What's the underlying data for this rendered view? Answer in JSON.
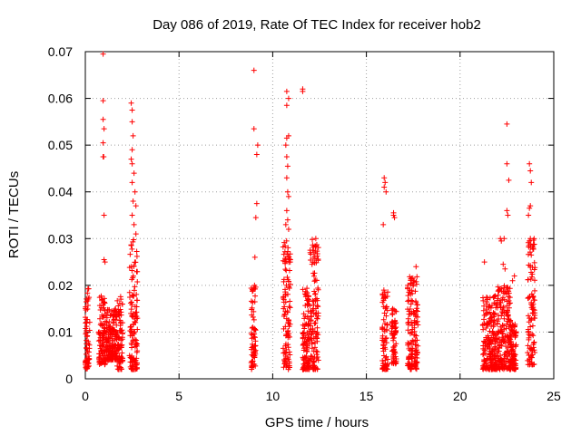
{
  "chart_data": {
    "type": "scatter",
    "title": "Day 086 of 2019, Rate Of TEC Index for receiver hob2",
    "xlabel": "GPS time / hours",
    "ylabel": "ROTI / TECUs",
    "xlim": [
      0,
      25
    ],
    "ylim": [
      0,
      0.07
    ],
    "xticks": [
      0,
      5,
      10,
      15,
      20,
      25
    ],
    "yticks": [
      0,
      0.01,
      0.02,
      0.03,
      0.04,
      0.05,
      0.06,
      0.07
    ],
    "xtick_labels": [
      "0",
      "5",
      "10",
      "15",
      "20",
      "25"
    ],
    "ytick_labels": [
      "0",
      "0.01",
      "0.02",
      "0.03",
      "0.04",
      "0.05",
      "0.06",
      "0.07"
    ],
    "grid": true,
    "marker": "+",
    "series": [
      {
        "name": "ROTI",
        "color": "#ff0000",
        "clusters": [
          {
            "x_start": 0.0,
            "x_end": 0.25,
            "y_low": 0.002,
            "y_high": 0.02
          },
          {
            "x_start": 0.7,
            "x_end": 1.1,
            "y_low": 0.003,
            "y_high": 0.018
          },
          {
            "x_start": 1.1,
            "x_end": 1.7,
            "y_low": 0.004,
            "y_high": 0.015
          },
          {
            "x_start": 1.7,
            "x_end": 2.0,
            "y_low": 0.002,
            "y_high": 0.018
          },
          {
            "x_start": 2.35,
            "x_end": 2.8,
            "y_low": 0.002,
            "y_high": 0.03
          },
          {
            "x_start": 8.85,
            "x_end": 9.1,
            "y_low": 0.002,
            "y_high": 0.02
          },
          {
            "x_start": 10.55,
            "x_end": 10.95,
            "y_low": 0.002,
            "y_high": 0.03
          },
          {
            "x_start": 11.6,
            "x_end": 12.0,
            "y_low": 0.002,
            "y_high": 0.02
          },
          {
            "x_start": 12.0,
            "x_end": 12.45,
            "y_low": 0.002,
            "y_high": 0.03
          },
          {
            "x_start": 15.85,
            "x_end": 16.15,
            "y_low": 0.002,
            "y_high": 0.02
          },
          {
            "x_start": 16.35,
            "x_end": 16.6,
            "y_low": 0.003,
            "y_high": 0.015
          },
          {
            "x_start": 17.2,
            "x_end": 17.75,
            "y_low": 0.002,
            "y_high": 0.022
          },
          {
            "x_start": 21.2,
            "x_end": 22.0,
            "y_low": 0.002,
            "y_high": 0.018
          },
          {
            "x_start": 22.0,
            "x_end": 22.7,
            "y_low": 0.002,
            "y_high": 0.02
          },
          {
            "x_start": 22.7,
            "x_end": 23.0,
            "y_low": 0.002,
            "y_high": 0.012
          },
          {
            "x_start": 23.6,
            "x_end": 24.0,
            "y_low": 0.003,
            "y_high": 0.03
          }
        ],
        "outliers": [
          [
            0.95,
            0.0695
          ],
          [
            0.95,
            0.0595
          ],
          [
            0.95,
            0.0555
          ],
          [
            1.0,
            0.0535
          ],
          [
            0.95,
            0.0505
          ],
          [
            0.98,
            0.0475
          ],
          [
            0.95,
            0.0475
          ],
          [
            1.0,
            0.035
          ],
          [
            1.0,
            0.0255
          ],
          [
            1.05,
            0.025
          ],
          [
            2.45,
            0.059
          ],
          [
            2.5,
            0.0575
          ],
          [
            2.5,
            0.055
          ],
          [
            2.55,
            0.052
          ],
          [
            2.5,
            0.049
          ],
          [
            2.45,
            0.047
          ],
          [
            2.5,
            0.046
          ],
          [
            2.6,
            0.044
          ],
          [
            2.5,
            0.042
          ],
          [
            2.65,
            0.04
          ],
          [
            2.55,
            0.038
          ],
          [
            2.7,
            0.037
          ],
          [
            2.5,
            0.035
          ],
          [
            2.6,
            0.033
          ],
          [
            2.7,
            0.031
          ],
          [
            9.0,
            0.066
          ],
          [
            9.0,
            0.0535
          ],
          [
            9.2,
            0.05
          ],
          [
            9.15,
            0.048
          ],
          [
            9.15,
            0.0375
          ],
          [
            9.1,
            0.0345
          ],
          [
            9.05,
            0.026
          ],
          [
            10.75,
            0.0615
          ],
          [
            10.85,
            0.06
          ],
          [
            10.75,
            0.0585
          ],
          [
            10.85,
            0.052
          ],
          [
            10.75,
            0.0515
          ],
          [
            10.7,
            0.05
          ],
          [
            10.75,
            0.0475
          ],
          [
            10.8,
            0.0455
          ],
          [
            10.75,
            0.043
          ],
          [
            10.8,
            0.04
          ],
          [
            10.85,
            0.039
          ],
          [
            10.75,
            0.036
          ],
          [
            10.8,
            0.034
          ],
          [
            10.7,
            0.033
          ],
          [
            10.85,
            0.032
          ],
          [
            11.6,
            0.062
          ],
          [
            11.6,
            0.0615
          ],
          [
            12.0,
            0.0275
          ],
          [
            12.2,
            0.027
          ],
          [
            12.3,
            0.03
          ],
          [
            12.15,
            0.025
          ],
          [
            12.1,
            0.0245
          ],
          [
            15.95,
            0.043
          ],
          [
            16.0,
            0.042
          ],
          [
            15.95,
            0.041
          ],
          [
            16.05,
            0.04
          ],
          [
            15.9,
            0.033
          ],
          [
            16.45,
            0.0355
          ],
          [
            16.5,
            0.0345
          ],
          [
            16.45,
            0.035
          ],
          [
            17.65,
            0.024
          ],
          [
            17.55,
            0.021
          ],
          [
            21.3,
            0.025
          ],
          [
            22.5,
            0.0545
          ],
          [
            22.5,
            0.046
          ],
          [
            22.6,
            0.0425
          ],
          [
            22.5,
            0.036
          ],
          [
            22.55,
            0.035
          ],
          [
            22.35,
            0.03
          ],
          [
            22.15,
            0.03
          ],
          [
            22.2,
            0.0295
          ],
          [
            22.3,
            0.0245
          ],
          [
            22.4,
            0.0235
          ],
          [
            22.9,
            0.022
          ],
          [
            22.8,
            0.021
          ],
          [
            23.7,
            0.046
          ],
          [
            23.75,
            0.0445
          ],
          [
            23.8,
            0.042
          ],
          [
            23.75,
            0.037
          ],
          [
            23.7,
            0.0365
          ],
          [
            23.65,
            0.035
          ],
          [
            23.75,
            0.03
          ],
          [
            23.7,
            0.0295
          ]
        ]
      }
    ]
  }
}
